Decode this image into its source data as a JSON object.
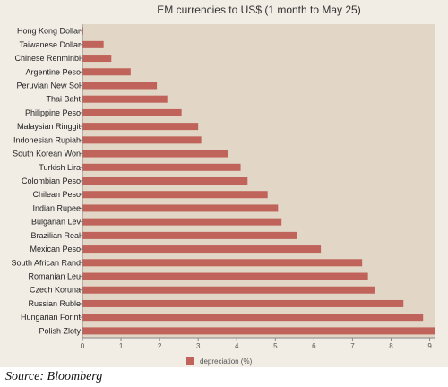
{
  "chart_data": {
    "type": "bar",
    "orientation": "horizontal",
    "title": "EM currencies to US$ (1 month to  May 25)",
    "categories": [
      "Hong Kong Dollar",
      "Taiwanese Dollar",
      "Chinese  Renminbi",
      "Argentine Peso",
      "Peruvian New Sol",
      "Thai Baht",
      "Philippine  Peso",
      "Malaysian Ringgit",
      "Indonesian Rupiah",
      "South Korean Won",
      "Turkish  Lira",
      "Colombian Peso",
      "Chilean Peso",
      "Indian Rupee",
      "Bulgarian Lev",
      "Brazilian  Real",
      "Mexican Peso",
      "South African Rand",
      "Romanian Leu",
      "Czech Koruna",
      "Russian  Ruble",
      "Hungarian Forint",
      "Polish Zloty"
    ],
    "series": [
      {
        "name": "depreciation  (%)",
        "color": "#c0635a",
        "values": [
          0.02,
          0.55,
          0.75,
          1.25,
          1.93,
          2.2,
          2.57,
          3.0,
          3.08,
          3.78,
          4.1,
          4.28,
          4.8,
          5.07,
          5.16,
          5.55,
          6.18,
          7.25,
          7.4,
          7.57,
          8.32,
          8.83,
          9.15
        ]
      }
    ],
    "xlim": [
      0,
      9.15
    ],
    "xticks": [
      "0",
      "1",
      "2",
      "3",
      "4",
      "5",
      "6",
      "7",
      "8",
      "9"
    ],
    "grid": false,
    "legend_position": "bottom",
    "plot_background": "#e2d7c6"
  },
  "source": "Source: Bloomberg"
}
